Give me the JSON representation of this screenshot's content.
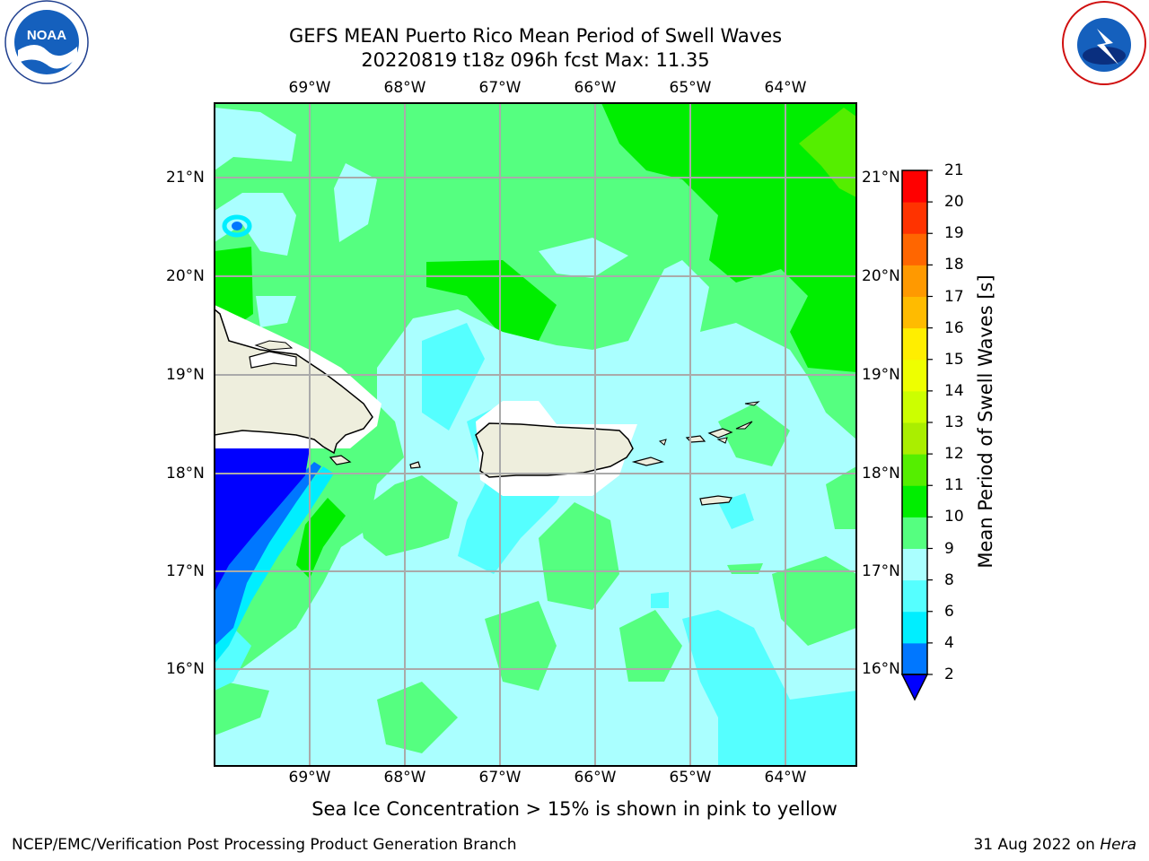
{
  "header": {
    "title_line1": "GEFS MEAN Puerto Rico Mean Period of Swell Waves",
    "title_line2": "20220819 t18z 096h fcst   Max: 11.35"
  },
  "logos": {
    "left": "NOAA",
    "left_ring_text": "NATIONAL OCEANIC AND ATMOSPHERIC ADMINISTRATION · U.S. DEPARTMENT OF COMMERCE",
    "right_ring_text": "NATIONAL WEATHER SERVICE"
  },
  "map": {
    "lon_labels": [
      "69°W",
      "68°W",
      "67°W",
      "66°W",
      "65°W",
      "64°W"
    ],
    "lat_labels": [
      "21°N",
      "20°N",
      "19°N",
      "18°N",
      "17°N",
      "16°N"
    ],
    "grid": true
  },
  "colorbar": {
    "label": "Mean Period of Swell Waves [s]",
    "ticks": [
      "2",
      "4",
      "6",
      "8",
      "9",
      "10",
      "11",
      "12",
      "13",
      "14",
      "15",
      "16",
      "17",
      "18",
      "19",
      "20",
      "21"
    ],
    "colors": [
      "#0000ff",
      "#0077ff",
      "#00eeff",
      "#55ffff",
      "#aaffff",
      "#55ff80",
      "#00ee00",
      "#55ee00",
      "#aaee00",
      "#ccff00",
      "#eeff00",
      "#ffee00",
      "#ffbb00",
      "#ff9900",
      "#ff6600",
      "#ff3300",
      "#ff0000"
    ],
    "extend": "min"
  },
  "note": "Sea Ice Concentration > 15% is shown in pink to yellow",
  "footer": {
    "left": "NCEP/EMC/Verification Post Processing Product Generation Branch",
    "right_date": "31 Aug 2022 on",
    "right_machine": "Hera"
  }
}
